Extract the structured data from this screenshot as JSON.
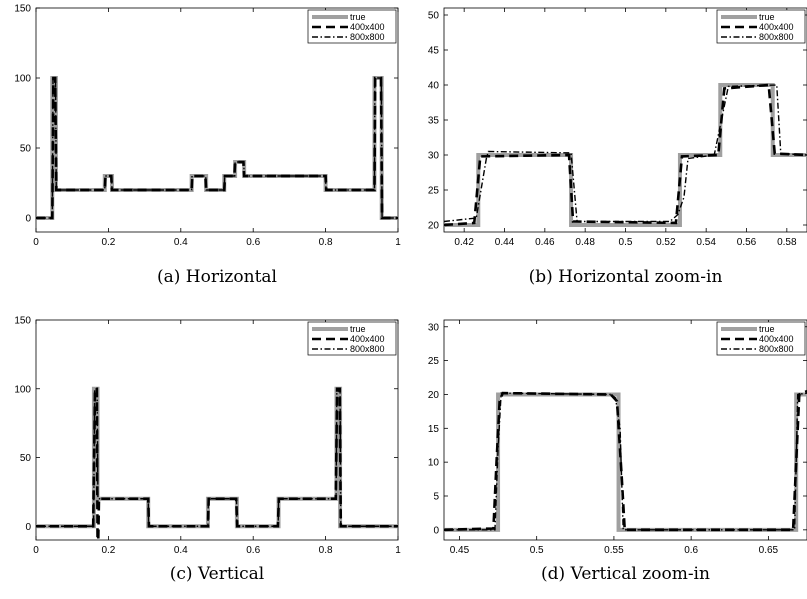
{
  "chart_data": [
    {
      "type": "line",
      "caption": "(a) Horizontal",
      "xlim": [
        0,
        1
      ],
      "ylim": [
        -10,
        150
      ],
      "xticks": [
        0,
        0.2,
        0.4,
        0.6,
        0.8,
        1
      ],
      "xtick_labels": [
        "0",
        "0.2",
        "0.4",
        "0.6",
        "0.8",
        "1"
      ],
      "yticks": [
        0,
        50,
        100,
        150
      ],
      "ytick_labels": [
        "0",
        "50",
        "100",
        "150"
      ],
      "legend": {
        "position": "top-right",
        "entries": [
          "true",
          "400x400",
          "800x800"
        ]
      },
      "series": [
        {
          "name": "true",
          "x": [
            0,
            0.045,
            0.045,
            0.055,
            0.055,
            0.19,
            0.19,
            0.21,
            0.21,
            0.43,
            0.43,
            0.47,
            0.47,
            0.52,
            0.52,
            0.55,
            0.55,
            0.575,
            0.575,
            0.8,
            0.8,
            0.935,
            0.935,
            0.955,
            0.955,
            1
          ],
          "y": [
            0,
            0,
            100,
            100,
            20,
            20,
            30,
            30,
            20,
            20,
            30,
            30,
            20,
            20,
            30,
            30,
            40,
            40,
            30,
            30,
            20,
            20,
            100,
            100,
            0,
            0
          ]
        },
        {
          "name": "400x400",
          "x": [
            0,
            0.045,
            0.048,
            0.053,
            0.056,
            0.19,
            0.192,
            0.208,
            0.21,
            0.43,
            0.432,
            0.468,
            0.47,
            0.52,
            0.522,
            0.548,
            0.55,
            0.573,
            0.575,
            0.8,
            0.802,
            0.935,
            0.937,
            0.953,
            0.956,
            1
          ],
          "y": [
            0,
            0,
            100,
            100,
            20,
            20,
            30,
            30,
            20,
            20,
            30,
            30,
            20,
            20,
            30,
            30,
            40,
            40,
            30,
            30,
            20,
            20,
            100,
            100,
            0,
            0
          ]
        },
        {
          "name": "800x800",
          "x": [
            0,
            0.045,
            0.047,
            0.054,
            0.056,
            0.19,
            0.191,
            0.209,
            0.21,
            0.43,
            0.431,
            0.469,
            0.47,
            0.52,
            0.521,
            0.549,
            0.55,
            0.574,
            0.575,
            0.8,
            0.801,
            0.935,
            0.936,
            0.954,
            0.956,
            1
          ],
          "y": [
            0,
            0,
            100,
            100,
            20,
            20,
            30,
            30,
            20,
            20,
            30,
            30,
            20,
            20,
            30,
            30,
            40,
            40,
            30,
            30,
            20,
            20,
            100,
            100,
            0,
            0
          ]
        }
      ]
    },
    {
      "type": "line",
      "caption": "(b) Horizontal zoom-in",
      "xlim": [
        0.41,
        0.59
      ],
      "ylim": [
        19,
        51
      ],
      "xticks": [
        0.42,
        0.44,
        0.46,
        0.48,
        0.5,
        0.52,
        0.54,
        0.56,
        0.58
      ],
      "xtick_labels": [
        "0.42",
        "0.44",
        "0.46",
        "0.48",
        "0.5",
        "0.52",
        "0.54",
        "0.56",
        "0.58"
      ],
      "yticks": [
        20,
        25,
        30,
        35,
        40,
        45,
        50
      ],
      "ytick_labels": [
        "20",
        "25",
        "30",
        "35",
        "40",
        "45",
        "50"
      ],
      "legend": {
        "position": "top-right",
        "entries": [
          "true",
          "400x400",
          "800x800"
        ]
      },
      "series": [
        {
          "name": "true",
          "x": [
            0.41,
            0.427,
            0.427,
            0.473,
            0.473,
            0.527,
            0.527,
            0.547,
            0.547,
            0.573,
            0.573,
            0.59
          ],
          "y": [
            20,
            20,
            30,
            30,
            20,
            20,
            30,
            30,
            40,
            40,
            30,
            30
          ]
        },
        {
          "name": "400x400",
          "x": [
            0.41,
            0.425,
            0.428,
            0.472,
            0.474,
            0.525,
            0.528,
            0.546,
            0.549,
            0.571,
            0.574,
            0.59
          ],
          "y": [
            20,
            20.3,
            29.8,
            30,
            20.5,
            20.3,
            29.8,
            30,
            39.5,
            40,
            30.2,
            30
          ]
        },
        {
          "name": "800x800",
          "x": [
            0.41,
            0.426,
            0.431,
            0.432,
            0.473,
            0.476,
            0.522,
            0.526,
            0.529,
            0.531,
            0.544,
            0.551,
            0.575,
            0.577,
            0.59
          ],
          "y": [
            20.5,
            21,
            29.5,
            30.5,
            30.3,
            20.5,
            20.5,
            21.5,
            24,
            29.5,
            30,
            39.8,
            40,
            30.2,
            30
          ]
        }
      ]
    },
    {
      "type": "line",
      "caption": "(c) Vertical",
      "xlim": [
        0,
        1
      ],
      "ylim": [
        -10,
        150
      ],
      "xticks": [
        0,
        0.2,
        0.4,
        0.6,
        0.8,
        1
      ],
      "xtick_labels": [
        "0",
        "0.2",
        "0.4",
        "0.6",
        "0.8",
        "1"
      ],
      "yticks": [
        0,
        50,
        100,
        150
      ],
      "ytick_labels": [
        "0",
        "50",
        "100",
        "150"
      ],
      "legend": {
        "position": "top-right",
        "entries": [
          "true",
          "400x400",
          "800x800"
        ]
      },
      "series": [
        {
          "name": "true",
          "x": [
            0,
            0.16,
            0.16,
            0.17,
            0.17,
            0.31,
            0.31,
            0.475,
            0.475,
            0.555,
            0.555,
            0.67,
            0.67,
            0.83,
            0.83,
            0.84,
            0.84,
            1
          ],
          "y": [
            0,
            0,
            100,
            100,
            20,
            20,
            0,
            0,
            20,
            20,
            0,
            0,
            20,
            20,
            100,
            100,
            0,
            0
          ]
        },
        {
          "name": "400x400",
          "x": [
            0,
            0.158,
            0.163,
            0.168,
            0.17,
            0.172,
            0.174,
            0.31,
            0.312,
            0.475,
            0.477,
            0.553,
            0.556,
            0.668,
            0.671,
            0.828,
            0.832,
            0.839,
            0.842,
            1
          ],
          "y": [
            0,
            0,
            100,
            100,
            -10,
            -10,
            20,
            20,
            0,
            0,
            20,
            20,
            0,
            0,
            20,
            20,
            100,
            100,
            0,
            0
          ]
        },
        {
          "name": "800x800",
          "x": [
            0,
            0.159,
            0.162,
            0.169,
            0.171,
            0.31,
            0.311,
            0.475,
            0.476,
            0.554,
            0.555,
            0.669,
            0.67,
            0.829,
            0.831,
            0.84,
            0.842,
            1
          ],
          "y": [
            0,
            0,
            100,
            100,
            20,
            20,
            0,
            0,
            20,
            20,
            0,
            0,
            20,
            20,
            100,
            100,
            0,
            0
          ]
        }
      ]
    },
    {
      "type": "line",
      "caption": "(d) Vertical zoom-in",
      "xlim": [
        0.44,
        0.675
      ],
      "ylim": [
        -1.5,
        31
      ],
      "xticks": [
        0.45,
        0.5,
        0.55,
        0.6,
        0.65
      ],
      "xtick_labels": [
        "0.45",
        "0.5",
        "0.55",
        "0.6",
        "0.65"
      ],
      "yticks": [
        0,
        5,
        10,
        15,
        20,
        25,
        30
      ],
      "ytick_labels": [
        "0",
        "5",
        "10",
        "15",
        "20",
        "25",
        "30"
      ],
      "legend": {
        "position": "top-right",
        "entries": [
          "true",
          "400x400",
          "800x800"
        ]
      },
      "series": [
        {
          "name": "true",
          "x": [
            0.44,
            0.475,
            0.475,
            0.553,
            0.553,
            0.668,
            0.668,
            0.675
          ],
          "y": [
            0,
            0,
            20,
            20,
            0,
            0,
            20,
            20
          ]
        },
        {
          "name": "400x400",
          "x": [
            0.44,
            0.472,
            0.474,
            0.476,
            0.478,
            0.548,
            0.552,
            0.555,
            0.557,
            0.666,
            0.668,
            0.67,
            0.675
          ],
          "y": [
            0,
            0.2,
            10,
            19,
            20.2,
            20,
            19,
            8,
            0,
            0,
            10,
            20,
            20.5
          ]
        },
        {
          "name": "800x800",
          "x": [
            0.44,
            0.473,
            0.475,
            0.477,
            0.548,
            0.551,
            0.554,
            0.556,
            0.667,
            0.669,
            0.675
          ],
          "y": [
            0,
            0,
            12,
            20.2,
            20,
            19.5,
            15,
            0,
            0,
            20,
            20.2
          ]
        }
      ]
    }
  ]
}
